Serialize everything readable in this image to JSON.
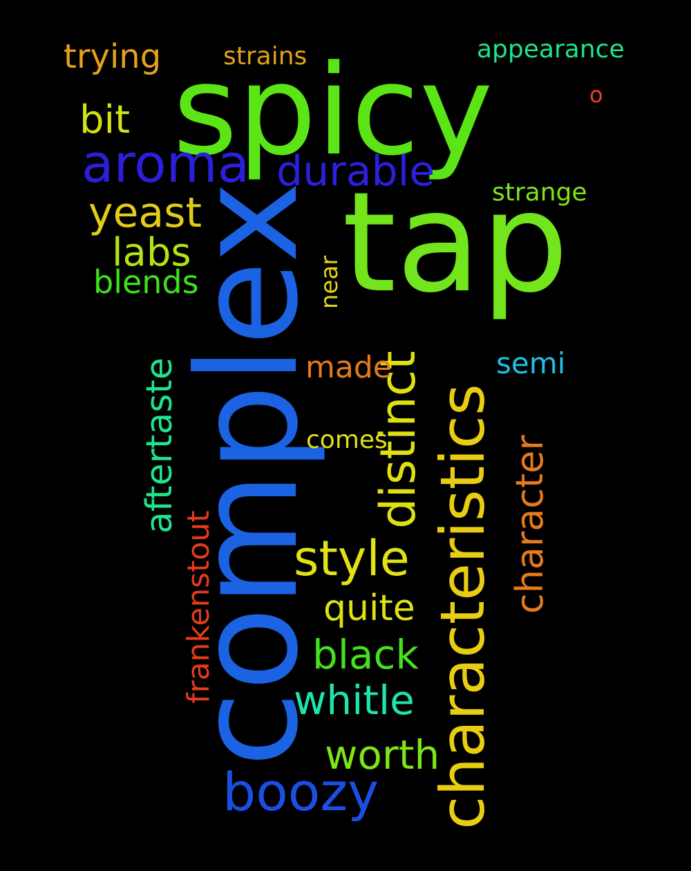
{
  "words": [
    {
      "text": "spicy",
      "color": "#5ce516",
      "vertical": false
    },
    {
      "text": "tap",
      "color": "#73e51c",
      "vertical": false
    },
    {
      "text": "complex",
      "color": "#1b63e3",
      "vertical": true
    },
    {
      "text": "characteristics",
      "color": "#e8cd12",
      "vertical": true
    },
    {
      "text": "aroma",
      "color": "#2b1fdc",
      "vertical": false
    },
    {
      "text": "durable",
      "color": "#2b21dd",
      "vertical": false
    },
    {
      "text": "boozy",
      "color": "#1b4fe3",
      "vertical": false
    },
    {
      "text": "distinct",
      "color": "#dee012",
      "vertical": true
    },
    {
      "text": "style",
      "color": "#e1e214",
      "vertical": false
    },
    {
      "text": "character",
      "color": "#e57b1c",
      "vertical": true
    },
    {
      "text": "aftertaste",
      "color": "#1ee58e",
      "vertical": true
    },
    {
      "text": "yeast",
      "color": "#e3cd18",
      "vertical": false
    },
    {
      "text": "labs",
      "color": "#b3e514",
      "vertical": false
    },
    {
      "text": "black",
      "color": "#44e21a",
      "vertical": false
    },
    {
      "text": "whitle",
      "color": "#1ee5ae",
      "vertical": false
    },
    {
      "text": "worth",
      "color": "#7ee518",
      "vertical": false
    },
    {
      "text": "quite",
      "color": "#dde214",
      "vertical": false
    },
    {
      "text": "trying",
      "color": "#e5a21a",
      "vertical": false
    },
    {
      "text": "bit",
      "color": "#d2e214",
      "vertical": false
    },
    {
      "text": "blends",
      "color": "#3de21c",
      "vertical": false
    },
    {
      "text": "frankenstout",
      "color": "#e53b1c",
      "vertical": true
    },
    {
      "text": "made",
      "color": "#e57b1e",
      "vertical": false
    },
    {
      "text": "semi",
      "color": "#1ec1e5",
      "vertical": false
    },
    {
      "text": "appearance",
      "color": "#1ee58e",
      "vertical": false
    },
    {
      "text": "strange",
      "color": "#7ee51c",
      "vertical": false
    },
    {
      "text": "strains",
      "color": "#e5a21a",
      "vertical": false
    },
    {
      "text": "comes",
      "color": "#e1e214",
      "vertical": false
    },
    {
      "text": "near",
      "color": "#e3d618",
      "vertical": true
    },
    {
      "text": "o",
      "color": "#e5451c",
      "vertical": false
    }
  ]
}
